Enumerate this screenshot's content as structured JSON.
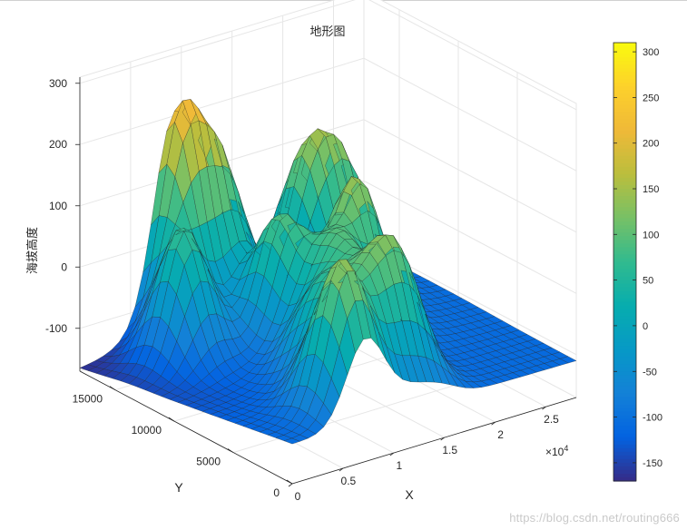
{
  "chart_data": {
    "type": "surface",
    "title": "地形图",
    "xlabel": "X",
    "ylabel": "Y",
    "zlabel": "海拔高度",
    "x_exponent_label": "×10",
    "x_exponent_power": "4",
    "xlim": [
      0,
      28000
    ],
    "ylim": [
      0,
      18000
    ],
    "zlim": [
      -170,
      310
    ],
    "x_ticks": [
      {
        "value": 0,
        "label": "0"
      },
      {
        "value": 5000,
        "label": "0.5"
      },
      {
        "value": 10000,
        "label": "1"
      },
      {
        "value": 15000,
        "label": "1.5"
      },
      {
        "value": 20000,
        "label": "2"
      },
      {
        "value": 25000,
        "label": "2.5"
      }
    ],
    "y_ticks": [
      {
        "value": 0,
        "label": "0"
      },
      {
        "value": 5000,
        "label": "5000"
      },
      {
        "value": 10000,
        "label": "10000"
      },
      {
        "value": 15000,
        "label": "15000"
      }
    ],
    "z_ticks": [
      {
        "value": -100,
        "label": "-100"
      },
      {
        "value": 0,
        "label": "0"
      },
      {
        "value": 100,
        "label": "100"
      },
      {
        "value": 200,
        "label": "200"
      },
      {
        "value": 300,
        "label": "300"
      }
    ],
    "colorbar": {
      "colormap": "parula",
      "limits": [
        -170,
        310
      ],
      "ticks": [
        {
          "value": -150,
          "label": "-150"
        },
        {
          "value": -100,
          "label": "-100"
        },
        {
          "value": -50,
          "label": "-50"
        },
        {
          "value": 0,
          "label": "0"
        },
        {
          "value": 50,
          "label": "50"
        },
        {
          "value": 100,
          "label": "100"
        },
        {
          "value": 150,
          "label": "150"
        },
        {
          "value": 200,
          "label": "200"
        },
        {
          "value": 250,
          "label": "250"
        },
        {
          "value": 300,
          "label": "300"
        }
      ]
    },
    "surface_peaks": [
      {
        "x": 9000,
        "y": 17500,
        "height": 300
      },
      {
        "x": 12500,
        "y": 17000,
        "height": 200
      },
      {
        "x": 19000,
        "y": 15500,
        "height": 160
      },
      {
        "x": 22000,
        "y": 14500,
        "height": 145
      },
      {
        "x": 5500,
        "y": 14000,
        "height": 170
      },
      {
        "x": 12000,
        "y": 11500,
        "height": 140
      },
      {
        "x": 17500,
        "y": 9500,
        "height": 190
      },
      {
        "x": 13500,
        "y": 7500,
        "height": 110
      },
      {
        "x": 14500,
        "y": 3500,
        "height": 140
      },
      {
        "x": 9500,
        "y": 6000,
        "height": 85
      },
      {
        "x": 11500,
        "y": 3000,
        "height": 95
      },
      {
        "x": 7500,
        "y": 1500,
        "height": 110
      },
      {
        "x": 6500,
        "y": 2500,
        "height": 60
      }
    ],
    "surface_base": {
      "corner_low": -165,
      "corner_far_left": -90,
      "corner_right": -110,
      "corner_front": -105
    },
    "grid": true
  },
  "watermark": "https://blog.csdn.net/routing666"
}
